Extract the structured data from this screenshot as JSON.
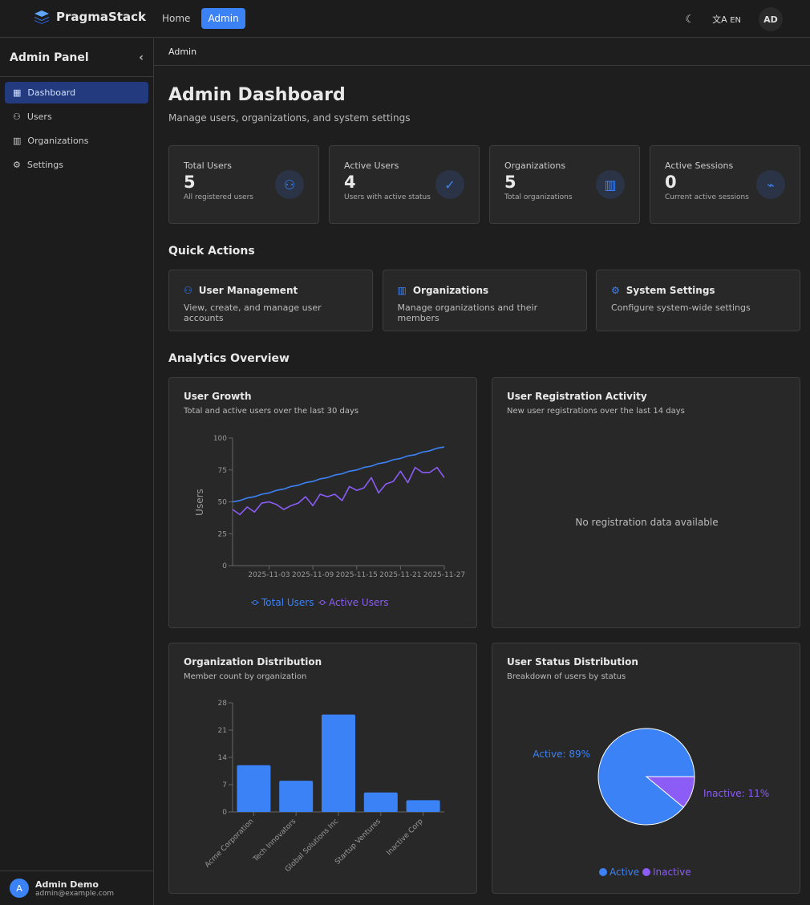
{
  "header": {
    "brand": "PragmaStack",
    "nav": [
      {
        "label": "Home"
      },
      {
        "label": "Admin"
      }
    ],
    "lang": "EN",
    "avatar": "AD",
    "accent": "#3b82f6"
  },
  "sidebar": {
    "title": "Admin Panel",
    "items": [
      {
        "label": "Dashboard",
        "icon": "dashboard-icon"
      },
      {
        "label": "Users",
        "icon": "users-icon"
      },
      {
        "label": "Organizations",
        "icon": "building-icon"
      },
      {
        "label": "Settings",
        "icon": "gear-icon"
      }
    ],
    "user": {
      "initial": "A",
      "name": "Admin Demo",
      "email": "admin@example.com"
    }
  },
  "breadcrumb": "Admin",
  "page": {
    "title": "Admin Dashboard",
    "subtitle": "Manage users, organizations, and system settings"
  },
  "stats": [
    {
      "label": "Total Users",
      "value": "5",
      "desc": "All registered users",
      "icon": "users-icon"
    },
    {
      "label": "Active Users",
      "value": "4",
      "desc": "Users with active status",
      "icon": "user-check-icon"
    },
    {
      "label": "Organizations",
      "value": "5",
      "desc": "Total organizations",
      "icon": "building-icon"
    },
    {
      "label": "Active Sessions",
      "value": "0",
      "desc": "Current active sessions",
      "icon": "activity-icon"
    }
  ],
  "quick_actions": {
    "title": "Quick Actions",
    "items": [
      {
        "title": "User Management",
        "desc": "View, create, and manage user accounts",
        "icon": "users-icon"
      },
      {
        "title": "Organizations",
        "desc": "Manage organizations and their members",
        "icon": "building-icon"
      },
      {
        "title": "System Settings",
        "desc": "Configure system-wide settings",
        "icon": "gear-icon"
      }
    ]
  },
  "analytics": {
    "title": "Analytics Overview",
    "cards": [
      {
        "title": "User Growth",
        "desc": "Total and active users over the last 30 days"
      },
      {
        "title": "User Registration Activity",
        "desc": "New user registrations over the last 14 days",
        "empty": "No registration data available"
      },
      {
        "title": "Organization Distribution",
        "desc": "Member count by organization"
      },
      {
        "title": "User Status Distribution",
        "desc": "Breakdown of users by status"
      }
    ]
  },
  "chart_data": [
    {
      "type": "line",
      "ylabel": "Users",
      "ylim": [
        0,
        100
      ],
      "yticks": [
        0,
        25,
        50,
        75,
        100
      ],
      "x_start": "2025-10-29",
      "x_end": "2025-11-27",
      "xticks": [
        "2025-11-03",
        "2025-11-09",
        "2025-11-15",
        "2025-11-21",
        "2025-11-27"
      ],
      "legend": "bottom",
      "series": [
        {
          "name": "Total Users",
          "color": "#3b82f6",
          "values": [
            50,
            51,
            53,
            54,
            56,
            57,
            59,
            60,
            62,
            63,
            65,
            66,
            68,
            69,
            71,
            72,
            74,
            75,
            77,
            78,
            80,
            81,
            83,
            84,
            86,
            87,
            89,
            90,
            92,
            93
          ]
        },
        {
          "name": "Active Users",
          "color": "#8b5cf6",
          "values": [
            44,
            40,
            46,
            42,
            49,
            50,
            48,
            44,
            47,
            49,
            54,
            47,
            56,
            54,
            56,
            51,
            62,
            59,
            61,
            69,
            57,
            64,
            66,
            74,
            65,
            77,
            73,
            73,
            77,
            69
          ]
        }
      ]
    },
    {
      "type": "bar",
      "ylim": [
        0,
        28
      ],
      "yticks": [
        0,
        7,
        14,
        21,
        28
      ],
      "color": "#3b82f6",
      "categories": [
        "Acme Corporation",
        "Tech Innovators",
        "Global Solutions Inc",
        "Startup Ventures",
        "Inactive Corp"
      ],
      "values": [
        12,
        8,
        25,
        5,
        3
      ]
    },
    {
      "type": "pie",
      "legend": "bottom",
      "slices": [
        {
          "name": "Active",
          "value": 89,
          "label": "Active: 89%",
          "color": "#3b82f6"
        },
        {
          "name": "Inactive",
          "value": 11,
          "label": "Inactive: 11%",
          "color": "#8b5cf6"
        }
      ]
    }
  ]
}
